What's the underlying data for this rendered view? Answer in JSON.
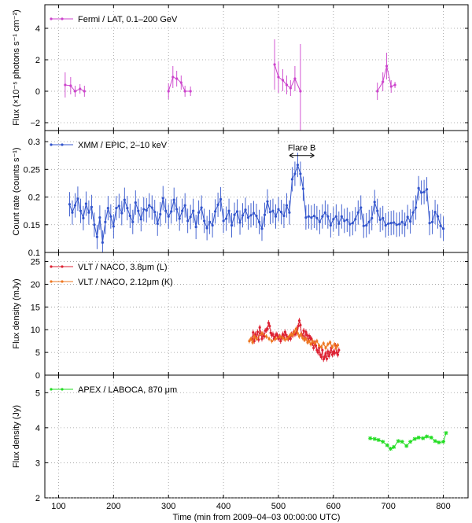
{
  "chart_data": [
    {
      "type": "scatter",
      "id": "fermi",
      "ylabel": "Flux (×10⁻⁵ photons s⁻¹ cm⁻²)",
      "ylim": [
        -2.5,
        5.5
      ],
      "yticks": [
        -2,
        0,
        2,
        4
      ],
      "yticklabels": [
        "−2",
        "0",
        "2",
        "4"
      ],
      "grid": true,
      "legend": "top-left",
      "series": [
        {
          "name": "Fermi / LAT, 0.1–200 GeV",
          "color": "#cc44cc",
          "connect": "groups",
          "groups": [
            {
              "x": [
                112,
                122,
                130,
                139,
                147
              ],
              "y": [
                0.4,
                0.35,
                0.0,
                0.15,
                0.0
              ],
              "err": [
                0.8,
                0.55,
                0.35,
                0.3,
                0.35
              ]
            },
            {
              "x": [
                300,
                308,
                315,
                323,
                330,
                340
              ],
              "y": [
                0.0,
                0.9,
                0.8,
                0.55,
                0.0,
                0.0
              ],
              "err": [
                0.5,
                0.7,
                0.5,
                0.45,
                0.35,
                0.3
              ]
            },
            {
              "x": [
                493,
                500,
                508,
                515,
                522,
                530,
                540
              ],
              "y": [
                1.7,
                0.9,
                0.7,
                0.4,
                0.2,
                0.8,
                0.0
              ],
              "err": [
                1.6,
                1.0,
                0.7,
                0.6,
                0.5,
                0.8,
                3.0
              ]
            },
            {
              "x": [
                680,
                690,
                697,
                705,
                712
              ],
              "y": [
                0.0,
                0.6,
                1.6,
                0.3,
                0.4
              ],
              "err": [
                0.55,
                0.6,
                0.85,
                0.4,
                0.2
              ]
            }
          ]
        }
      ]
    },
    {
      "type": "line",
      "id": "xmm",
      "ylabel": "Count rate (counts s⁻¹)",
      "ylim": [
        0.1,
        0.32
      ],
      "yticks": [
        0.1,
        0.15,
        0.2,
        0.25,
        0.3
      ],
      "yticklabels": [
        "0.1",
        "0.15",
        "0.2",
        "0.25",
        "0.3"
      ],
      "grid": true,
      "legend": "top-left",
      "annotation": {
        "text": "Flare B",
        "x_start": 520,
        "x_end": 565,
        "y": 0.275
      },
      "series": [
        {
          "name": "XMM / EPIC, 2–10 keV",
          "color": "#3355cc",
          "x0": 120,
          "dx": 5,
          "err": 0.022,
          "y": [
            0.187,
            0.172,
            0.185,
            0.197,
            0.175,
            0.162,
            0.188,
            0.172,
            0.182,
            0.15,
            0.128,
            0.163,
            0.118,
            0.155,
            0.18,
            0.165,
            0.147,
            0.18,
            0.184,
            0.171,
            0.195,
            0.18,
            0.166,
            0.155,
            0.19,
            0.175,
            0.16,
            0.178,
            0.176,
            0.185,
            0.181,
            0.173,
            0.152,
            0.169,
            0.198,
            0.175,
            0.165,
            0.174,
            0.195,
            0.178,
            0.161,
            0.175,
            0.185,
            0.157,
            0.164,
            0.175,
            0.146,
            0.172,
            0.181,
            0.157,
            0.144,
            0.155,
            0.149,
            0.174,
            0.186,
            0.196,
            0.157,
            0.161,
            0.175,
            0.149,
            0.168,
            0.174,
            0.154,
            0.167,
            0.177,
            0.163,
            0.167,
            0.171,
            0.166,
            0.155,
            0.143,
            0.168,
            0.192,
            0.173,
            0.175,
            0.165,
            0.178,
            0.173,
            0.166,
            0.185,
            0.172,
            0.232,
            0.242,
            0.258,
            0.242,
            0.215,
            0.163,
            0.165,
            0.163,
            0.166,
            0.162,
            0.155,
            0.165,
            0.172,
            0.165,
            0.149,
            0.16,
            0.165,
            0.152,
            0.165,
            0.157,
            0.159,
            0.151,
            0.153,
            0.16,
            0.172,
            0.181,
            0.148,
            0.149,
            0.155,
            0.162,
            0.191,
            0.175,
            0.159,
            0.162,
            0.149,
            0.152,
            0.153,
            0.154,
            0.15,
            0.151,
            0.155,
            0.15,
            0.164,
            0.156,
            0.172,
            0.181,
            0.216,
            0.208,
            0.209,
            0.214,
            0.153,
            0.155,
            0.173,
            0.165,
            0.148,
            0.143
          ]
        }
      ]
    },
    {
      "type": "line",
      "id": "vlt",
      "ylabel": "Flux density (mJy)",
      "ylim": [
        0,
        27
      ],
      "yticks": [
        0,
        5,
        10,
        15,
        20,
        25
      ],
      "yticklabels": [
        "0",
        "5",
        "10",
        "15",
        "20",
        "25"
      ],
      "grid": true,
      "legend": "top-left",
      "series": [
        {
          "name": "VLT / NACO, 3.8μm (L)",
          "color": "#dd2233",
          "x0": 452,
          "dx": 2,
          "err": 0.6,
          "y": [
            8.0,
            9.4,
            7.5,
            9.0,
            8.1,
            9.5,
            7.8,
            10.5,
            9.2,
            8.0,
            9.0,
            8.5,
            9.8,
            9.9,
            10.2,
            11.5,
            10.8,
            9.3,
            8.8,
            9.0,
            8.0,
            8.5,
            9.0,
            8.8,
            8.0,
            8.5,
            7.5,
            8.3,
            9.0,
            8.2,
            9.5,
            8.8,
            8.4,
            8.0,
            8.5,
            8.0,
            9.0,
            8.7,
            9.5,
            9.0,
            9.2,
            10.0,
            10.8,
            12.0,
            11.0,
            9.0,
            8.6,
            9.8,
            8.0,
            9.5,
            8.8,
            7.5,
            8.6,
            8.2,
            8.0,
            7.0,
            6.0,
            7.2,
            6.5,
            5.5,
            5.0,
            6.0,
            4.5,
            4.0,
            5.5,
            3.5,
            4.0,
            4.8,
            3.6,
            5.2,
            4.2,
            5.0,
            6.0,
            4.5,
            5.2,
            4.8,
            6.5,
            5.0,
            4.5,
            5.5
          ]
        },
        {
          "name": "VLT / NACO, 2.12μm (K)",
          "color": "#ee7722",
          "x": [
            447,
            450,
            453,
            456,
            460,
            470,
            478,
            483,
            488,
            495,
            503,
            508,
            512,
            516,
            520,
            523,
            526,
            529,
            532,
            535,
            538,
            541,
            544,
            547,
            550,
            553,
            556,
            559,
            562,
            566,
            570,
            574,
            578,
            582,
            586,
            590,
            594,
            598,
            602,
            605,
            608
          ],
          "err": 0.5,
          "y": [
            7.5,
            8.0,
            7.2,
            8.5,
            8.0,
            9.2,
            8.5,
            8.0,
            7.5,
            8.0,
            8.5,
            8.2,
            7.8,
            8.0,
            8.6,
            9.0,
            8.8,
            9.5,
            10.2,
            9.2,
            8.5,
            9.0,
            8.2,
            7.8,
            8.0,
            7.2,
            7.5,
            6.8,
            7.5,
            7.0,
            7.5,
            6.5,
            6.2,
            7.0,
            6.0,
            6.8,
            7.2,
            6.2,
            6.8,
            6.0,
            6.6
          ]
        }
      ]
    },
    {
      "type": "line",
      "id": "apex",
      "ylabel": "Flux density (Jy)",
      "ylim": [
        2,
        5.5
      ],
      "yticks": [
        2,
        3,
        4,
        5
      ],
      "yticklabels": [
        "2",
        "3",
        "4",
        "5"
      ],
      "grid": true,
      "legend": "top-left",
      "series": [
        {
          "name": "APEX / LABOCA, 870 μm",
          "color": "#22dd22",
          "x": [
            667,
            675,
            682,
            690,
            698,
            704,
            710,
            718,
            725,
            733,
            740,
            748,
            755,
            763,
            770,
            778,
            785,
            792,
            800,
            805
          ],
          "y": [
            3.7,
            3.68,
            3.65,
            3.6,
            3.5,
            3.4,
            3.45,
            3.62,
            3.6,
            3.48,
            3.6,
            3.68,
            3.72,
            3.7,
            3.75,
            3.72,
            3.62,
            3.58,
            3.6,
            3.85
          ]
        }
      ]
    }
  ],
  "axes": {
    "xlabel": "Time (min from 2009–04–03 00:00:00 UTC)",
    "xlim": [
      75,
      845
    ],
    "xticks": [
      100,
      200,
      300,
      400,
      500,
      600,
      700,
      800
    ]
  }
}
